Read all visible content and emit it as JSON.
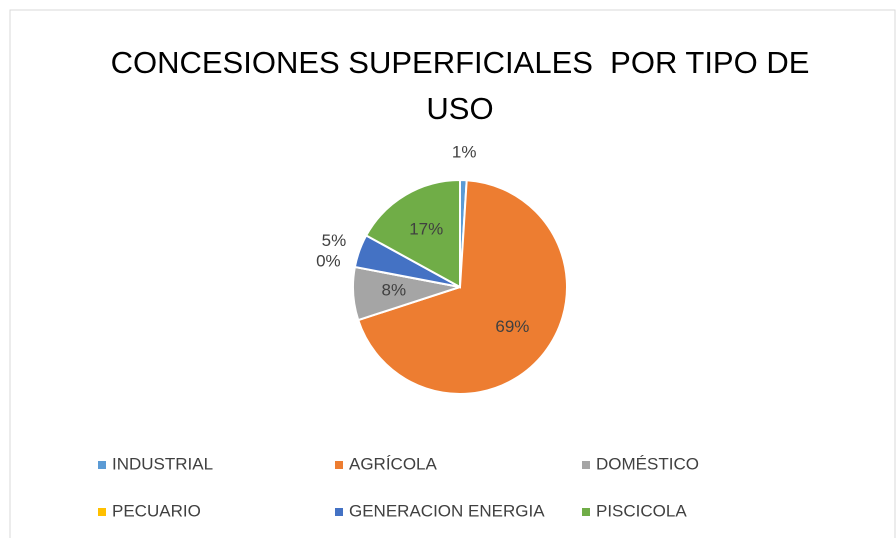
{
  "chart_data": {
    "type": "pie",
    "title": "CONCESIONES SUPERFICIALES  POR TIPO DE USO",
    "categories": [
      "INDUSTRIAL",
      "AGRÍCOLA",
      "DOMÉSTICO",
      "PECUARIO",
      "GENERACION ENERGIA",
      "PISCICOLA"
    ],
    "values": [
      1,
      69,
      8,
      0,
      5,
      17
    ],
    "value_labels": [
      "1%",
      "69%",
      "8%",
      "0%",
      "5%",
      "17%"
    ],
    "colors": [
      "#5b9bd5",
      "#ed7d31",
      "#a5a5a5",
      "#ffc000",
      "#4472c4",
      "#70ad47"
    ],
    "legend": "bottom"
  }
}
